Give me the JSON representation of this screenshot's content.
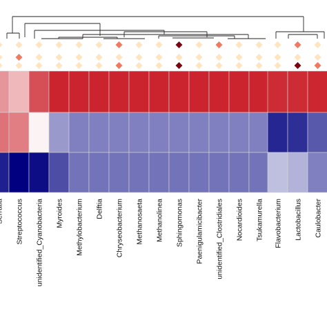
{
  "chart_data": {
    "type": "heatmap",
    "columns": [
      "Serratia",
      "Streptococcus",
      "unidentified_Cyanobacteria",
      "Myroides",
      "Methylobacterium",
      "Delftia",
      "Chryseobacterium",
      "Methanosaeta",
      "Methanolinea",
      "Sphingomonas",
      "Paenigulamicibacter",
      "unidentified_Clostridiales",
      "Nocardioides",
      "Tsukamurella",
      "Flavobacterium",
      "Lactobacillus",
      "Caulobacter"
    ],
    "rows": 3,
    "values": [
      [
        0.45,
        0.3,
        0.75,
        0.93,
        0.93,
        0.93,
        0.93,
        0.93,
        0.93,
        0.93,
        0.93,
        0.93,
        0.93,
        0.93,
        0.9,
        0.9,
        0.92
      ],
      [
        0.6,
        0.55,
        0.05,
        -0.4,
        -0.5,
        -0.5,
        -0.5,
        -0.5,
        -0.5,
        -0.5,
        -0.5,
        -0.5,
        -0.5,
        -0.5,
        -0.85,
        -0.82,
        -0.65
      ],
      [
        -0.88,
        -1.0,
        -0.95,
        -0.7,
        -0.55,
        -0.55,
        -0.55,
        -0.55,
        -0.55,
        -0.55,
        -0.55,
        -0.55,
        -0.55,
        -0.55,
        -0.25,
        -0.3,
        -0.5
      ]
    ],
    "value_range": [
      -1,
      1
    ],
    "color_scale": {
      "low": "#000080",
      "mid": "#ffffff",
      "high": "#c8141e"
    },
    "marker_shape": "diamond",
    "marker_rows": [
      [
        "#ffe4c0",
        "#ffe4c0",
        "#ffe4c0",
        "#ffe4c0",
        "#ffe4c0",
        "#ffe4c0",
        "#ef7a60",
        "#ffe4c0",
        "#ffe4c0",
        "#7a0510",
        "#ffe4c0",
        "#ef7a60",
        "#ffe4c0",
        "#ffe4c0",
        "#ffe4c0",
        "#ef7a60",
        "#ffe4c0"
      ],
      [
        "#ffe4c0",
        "#ef7a60",
        "#ffe4c0",
        "#ffe4c0",
        "#ffe4c0",
        "#ffe4c0",
        "#ffe4c0",
        "#ffe4c0",
        "#ffe4c0",
        "#ffe4c0",
        "#ffe4c0",
        "#ffe4c0",
        "#ffe4c0",
        "#ffe4c0",
        "#ffe4c0",
        "#ffe4c0",
        "#ffe4c0"
      ],
      [
        "#ffe4c0",
        "#ffe4c0",
        "#ffe4c0",
        "#ffe4c0",
        "#ffe4c0",
        "#ffe4c0",
        "#ef7a60",
        "#ffe4c0",
        "#ffe4c0",
        "#7a0510",
        "#ffe4c0",
        "#ffe4c0",
        "#ffe4c0",
        "#ffe4c0",
        "#ffe4c0",
        "#7a0510",
        "#ef7a60"
      ]
    ],
    "column_dendrogram": true,
    "grid": true,
    "title": "",
    "xlabel": "",
    "ylabel": ""
  }
}
